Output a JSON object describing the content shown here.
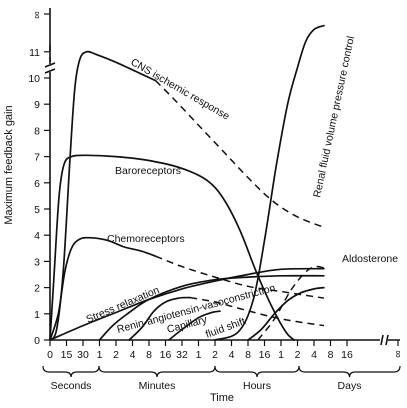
{
  "chart_data": {
    "type": "line",
    "title": "",
    "xlabel": "Time",
    "ylabel": "Maximum feedback gain",
    "ylim": [
      0,
      11
    ],
    "y_ticks": [
      "0",
      "1",
      "2",
      "3",
      "4",
      "5",
      "6",
      "7",
      "8",
      "9",
      "10",
      "11"
    ],
    "y_infinity_label": "∞",
    "x_infinity_label": "∞",
    "x_segments": [
      {
        "name": "Seconds",
        "ticks": [
          "0",
          "15",
          "30"
        ]
      },
      {
        "name": "Minutes",
        "ticks": [
          "1",
          "2",
          "4",
          "8",
          "16",
          "32"
        ]
      },
      {
        "name": "Hours",
        "ticks": [
          "1",
          "2",
          "4",
          "8",
          "16"
        ]
      },
      {
        "name": "Days",
        "ticks": [
          "1",
          "2",
          "4",
          "8",
          "16"
        ]
      }
    ],
    "series": [
      {
        "name": "CNS ischemic response",
        "solid": [
          [
            0,
            0
          ],
          [
            0.4,
            0.4
          ],
          [
            0.8,
            2.6
          ],
          [
            1.2,
            6.8
          ],
          [
            1.5,
            9.6
          ],
          [
            1.8,
            10.7
          ],
          [
            2.2,
            11
          ],
          [
            2.8,
            10.9
          ],
          [
            4,
            10.6
          ],
          [
            5.2,
            10.25
          ],
          [
            6.4,
            9.9
          ]
        ],
        "dashed": [
          [
            6.4,
            9.9
          ],
          [
            7.5,
            9.2
          ],
          [
            9,
            8.2
          ],
          [
            10.5,
            7.2
          ],
          [
            12,
            6.2
          ],
          [
            13.5,
            5.3
          ],
          [
            15,
            4.7
          ],
          [
            16.6,
            4.3
          ]
        ]
      },
      {
        "name": "Baroreceptors",
        "solid": [
          [
            0,
            0
          ],
          [
            0.25,
            2.5
          ],
          [
            0.55,
            5.5
          ],
          [
            0.85,
            6.7
          ],
          [
            1.3,
            7
          ],
          [
            2.2,
            7.05
          ],
          [
            4,
            7
          ],
          [
            6,
            6.85
          ],
          [
            8,
            6.55
          ],
          [
            9.5,
            6.1
          ],
          [
            10.5,
            5.4
          ],
          [
            11.5,
            4.2
          ],
          [
            12.5,
            2.6
          ],
          [
            13.5,
            1.2
          ],
          [
            14.3,
            0.3
          ],
          [
            14.8,
            0
          ]
        ]
      },
      {
        "name": "Chemoreceptors",
        "solid": [
          [
            0,
            0
          ],
          [
            0.5,
            1
          ],
          [
            0.9,
            2.6
          ],
          [
            1.3,
            3.5
          ],
          [
            1.8,
            3.85
          ],
          [
            2.5,
            3.9
          ],
          [
            3.5,
            3.8
          ],
          [
            4.5,
            3.55
          ],
          [
            5.5,
            3.4
          ],
          [
            6.4,
            3.2
          ]
        ],
        "dashed": [
          [
            6.4,
            3.2
          ],
          [
            8,
            2.8
          ],
          [
            10,
            2.4
          ],
          [
            12,
            2.05
          ],
          [
            14,
            1.85
          ],
          [
            16.6,
            1.6
          ]
        ]
      },
      {
        "name": "Stress relaxation",
        "solid": [
          [
            0,
            0
          ],
          [
            2,
            0.55
          ],
          [
            4,
            1.05
          ],
          [
            6,
            1.55
          ],
          [
            8,
            1.95
          ],
          [
            10,
            2.25
          ],
          [
            12,
            2.5
          ],
          [
            14,
            2.7
          ],
          [
            16.6,
            2.72
          ]
        ]
      },
      {
        "name": "Renin-angiotensin-vasoconstriction",
        "solid": [
          [
            3,
            0
          ],
          [
            3.8,
            0.55
          ],
          [
            4.8,
            1.05
          ],
          [
            6,
            1.55
          ],
          [
            8,
            2.05
          ],
          [
            10,
            2.3
          ],
          [
            12,
            2.4
          ],
          [
            14,
            2.45
          ],
          [
            16.6,
            2.45
          ]
        ]
      },
      {
        "name": "Capillary",
        "solid": [
          [
            4.8,
            0
          ],
          [
            5.6,
            0.5
          ],
          [
            6.3,
            1.1
          ],
          [
            7,
            1.45
          ],
          [
            7.8,
            1.6
          ],
          [
            8.5,
            1.62
          ]
        ],
        "dashed": [
          [
            8.5,
            1.62
          ],
          [
            10,
            1.45
          ],
          [
            11.5,
            1.2
          ],
          [
            13,
            0.95
          ],
          [
            14.5,
            0.75
          ],
          [
            16.6,
            0.55
          ]
        ]
      },
      {
        "name": "fluid shift",
        "solid": [
          [
            7.2,
            0
          ],
          [
            8,
            0.4
          ],
          [
            9,
            0.85
          ],
          [
            9.8,
            1.05
          ],
          [
            10.3,
            1.1
          ]
        ]
      },
      {
        "name": "Renal fluid volume pressure control",
        "solid": [
          [
            10,
            0
          ],
          [
            11.4,
            0.3
          ],
          [
            12.3,
            1.5
          ],
          [
            13,
            3.8
          ],
          [
            13.7,
            6.6
          ],
          [
            14.4,
            9
          ],
          [
            15,
            10.4
          ],
          [
            15.5,
            11.4
          ],
          [
            16,
            11.85
          ],
          [
            16.6,
            12
          ]
        ]
      },
      {
        "name": "Aldosterone",
        "solid": [
          [
            12,
            0
          ],
          [
            12.8,
            0.4
          ],
          [
            13.6,
            1
          ],
          [
            14.4,
            1.5
          ],
          [
            15.2,
            1.8
          ],
          [
            16,
            1.95
          ],
          [
            16.6,
            2
          ]
        ],
        "dashed": [
          [
            12.6,
            0
          ],
          [
            13.6,
            0.8
          ],
          [
            14.6,
            1.9
          ],
          [
            15.5,
            2.6
          ],
          [
            16.1,
            2.8
          ],
          [
            16.6,
            2.75
          ]
        ]
      }
    ]
  }
}
